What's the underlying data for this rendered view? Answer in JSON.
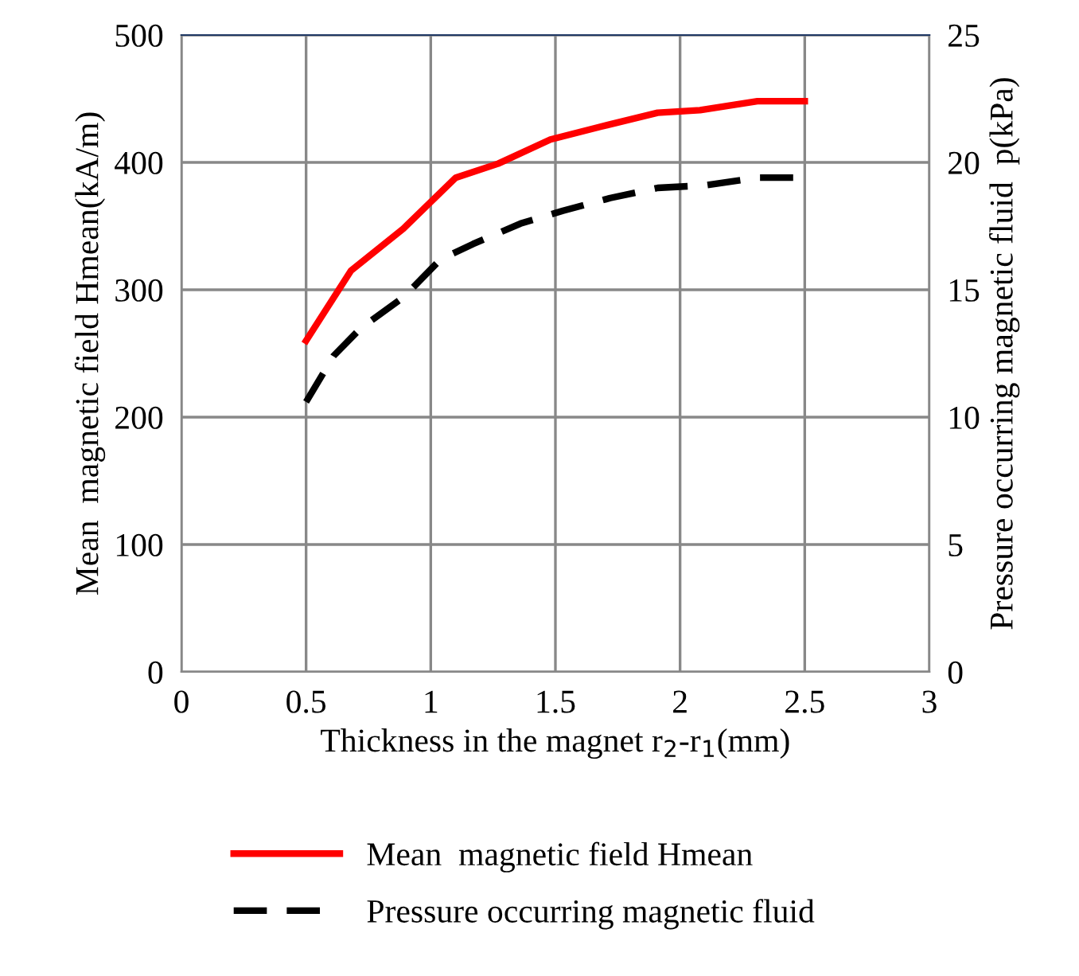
{
  "chart_data": {
    "type": "line",
    "xlabel": "Thickness in the magnet r$_{2}$-r$_{1}$(mm)",
    "ylabel": "Mean  magnetic field Hmean(kA/m)",
    "y2label": "Pressure occurring magnetic fluid  p(kPa)",
    "xlim": [
      0,
      3
    ],
    "xticks": [
      0,
      0.5,
      1,
      1.5,
      2,
      2.5,
      3
    ],
    "ylim": [
      0,
      500
    ],
    "yticks": [
      0,
      100,
      200,
      300,
      400,
      500
    ],
    "y2lim": [
      0,
      25
    ],
    "y2ticks": [
      0,
      5,
      10,
      15,
      20,
      25
    ],
    "grid": true,
    "legend": "bottom",
    "series": [
      {
        "name": "Mean  magnetic field Hmean",
        "color": "#ff0000",
        "line_style": "solid",
        "x": [
          0.5,
          0.68,
          0.89,
          1.1,
          1.27,
          1.48,
          1.68,
          1.91,
          2.08,
          2.31,
          2.5
        ],
        "values": [
          260,
          315,
          348,
          388,
          399,
          418,
          428,
          439,
          441,
          448,
          448
        ]
      },
      {
        "name": "Pressure occurring magnetic fluid",
        "color": "#000000",
        "line_style": "dashed",
        "axis": "y2",
        "x": [
          0.5,
          0.61,
          0.72,
          0.89,
          1.04,
          1.17,
          1.36,
          1.53,
          1.72,
          1.91,
          2.1,
          2.31,
          2.5
        ],
        "values": [
          10.6,
          12.4,
          13.5,
          14.7,
          16.2,
          16.8,
          17.6,
          18.1,
          18.6,
          19.0,
          19.1,
          19.4,
          19.4
        ]
      }
    ]
  }
}
